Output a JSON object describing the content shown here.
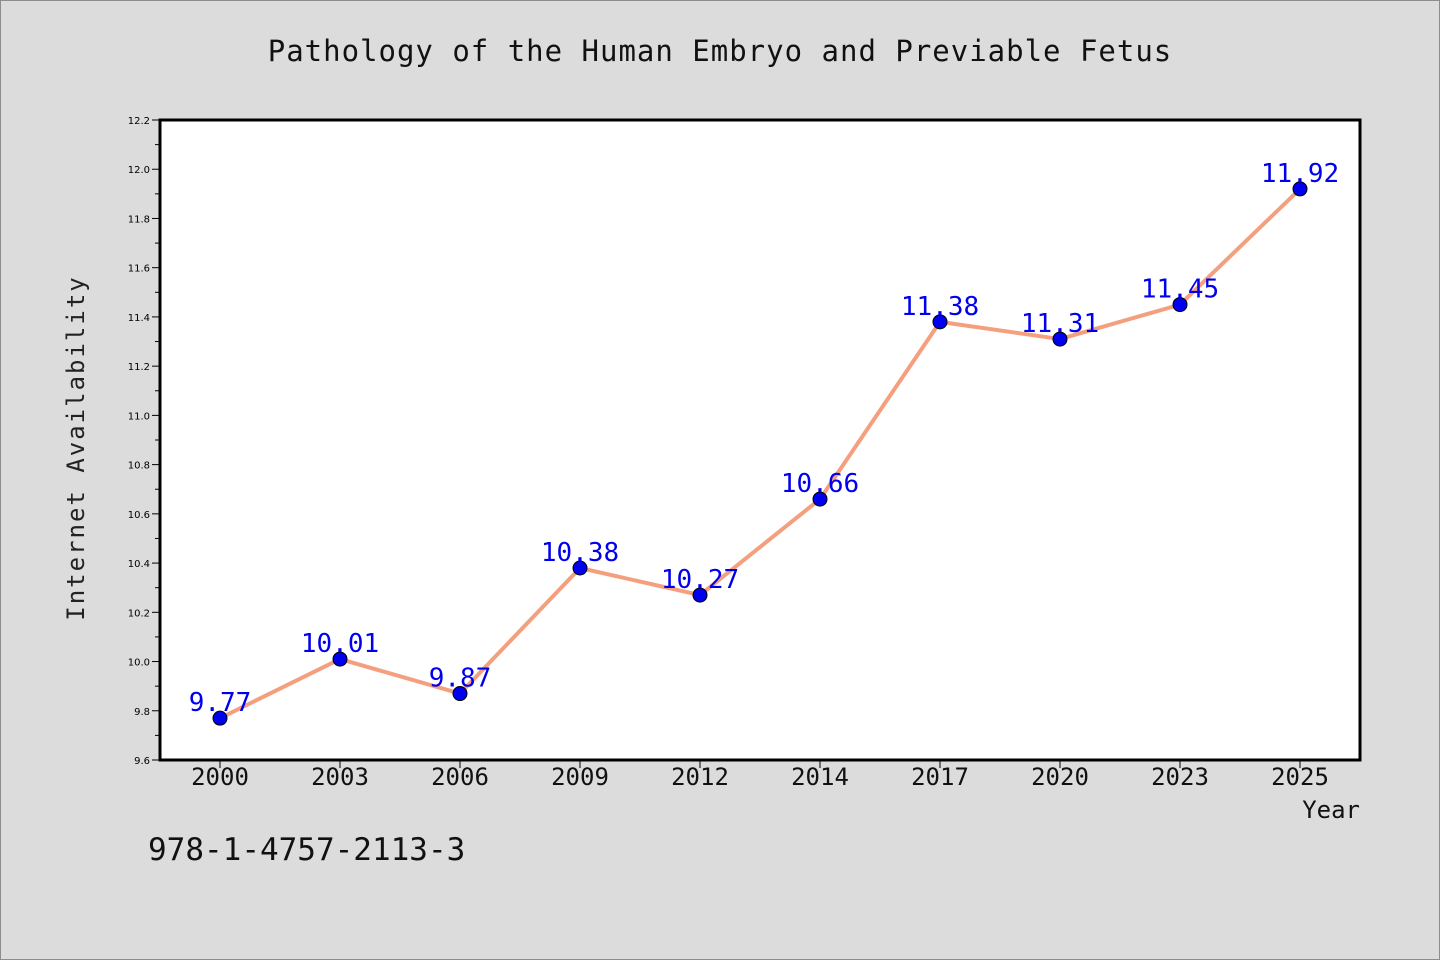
{
  "chart_data": {
    "type": "line",
    "title": "Pathology of the Human Embryo and Previable Fetus",
    "xlabel": "Year",
    "ylabel": "Internet Availability",
    "categories": [
      "2000",
      "2003",
      "2006",
      "2009",
      "2012",
      "2014",
      "2017",
      "2020",
      "2023",
      "2025"
    ],
    "series": [
      {
        "values": [
          9.77,
          10.01,
          9.87,
          10.38,
          10.27,
          10.66,
          11.38,
          11.31,
          11.45,
          11.92
        ],
        "data_labels": [
          "9.77",
          "10.01",
          "9.87",
          "10.38",
          "10.27",
          "10.66",
          "11.38",
          "11.31",
          "11.45",
          "11.92"
        ]
      }
    ],
    "ylim": [
      9.6,
      12.2
    ],
    "yticks": [
      "9.6",
      "9.8",
      "10.0",
      "10.2",
      "10.4",
      "10.6",
      "10.8",
      "11.0",
      "11.2",
      "11.4",
      "11.6",
      "11.8",
      "12.0",
      "12.2"
    ],
    "grid": false,
    "line_color": "#f4a07f",
    "marker_color": "#0000ee",
    "label_color": "#0000ee",
    "background_color": "#dcdcdc",
    "plot_background_color": "#ffffff"
  },
  "footer_text": "978-1-4757-2113-3"
}
